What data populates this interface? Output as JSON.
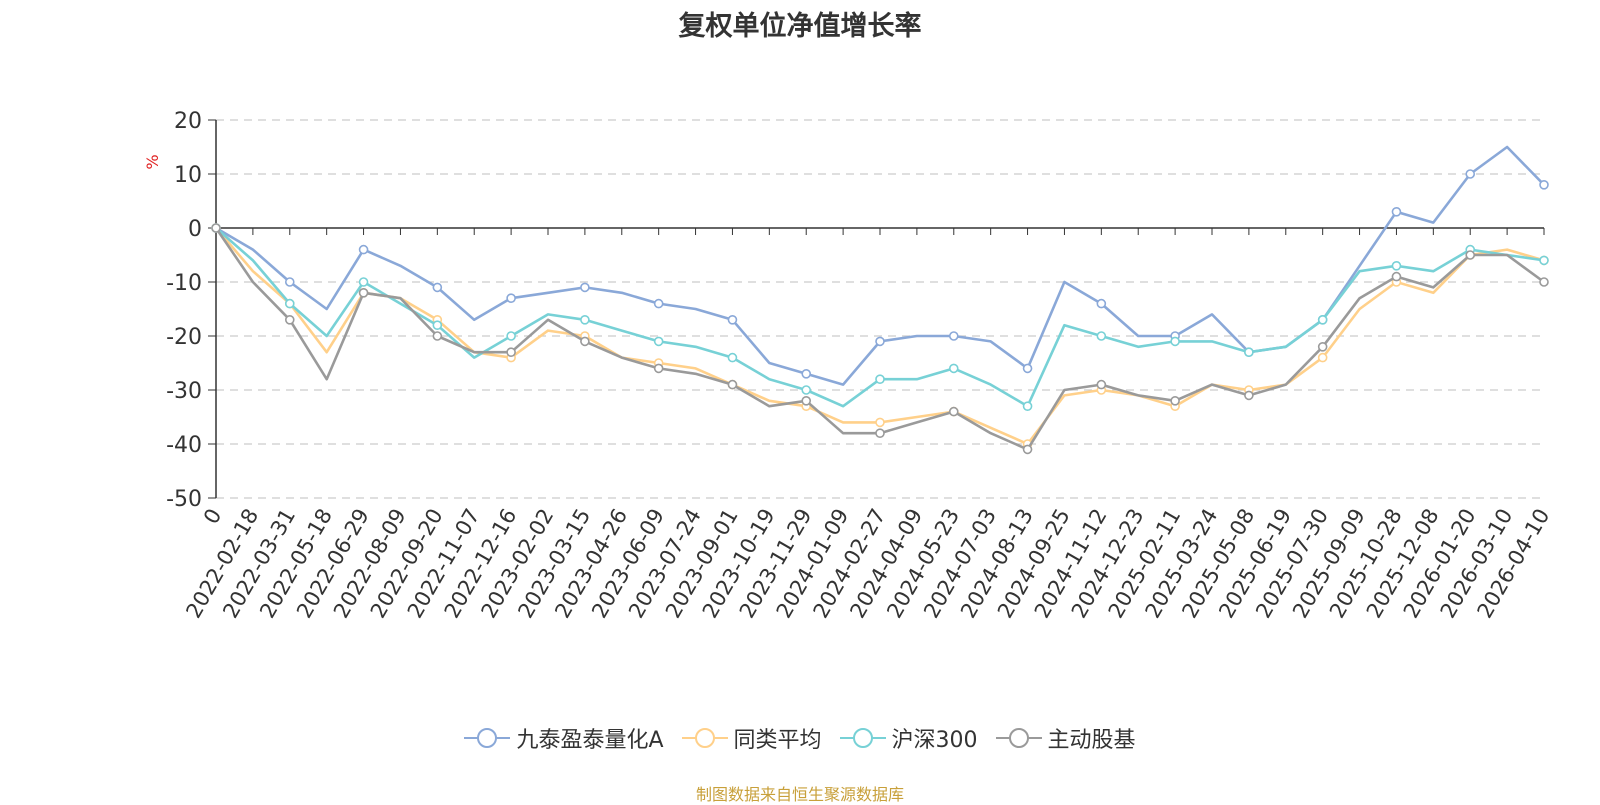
{
  "chart_data": {
    "type": "line",
    "title": "复权单位净值增长率",
    "ylabel": "%",
    "xlabel": "",
    "ylim": [
      -50,
      20
    ],
    "yticks": [
      20,
      10,
      0,
      -10,
      -20,
      -30,
      -40,
      -50
    ],
    "grid": true,
    "categories": [
      "0",
      "2022-02-18",
      "2022-03-31",
      "2022-05-18",
      "2022-06-29",
      "2022-08-09",
      "2022-09-20",
      "2022-11-07",
      "2022-12-16",
      "2023-02-02",
      "2023-03-15",
      "2023-04-26",
      "2023-06-09",
      "2023-07-24",
      "2023-09-01",
      "2023-10-19",
      "2023-11-29",
      "2024-01-09",
      "2024-02-27",
      "2024-04-09",
      "2024-05-23",
      "2024-07-03",
      "2024-08-13",
      "2024-09-25",
      "2024-11-12",
      "2024-12-23",
      "2025-02-11",
      "2025-03-24",
      "2025-05-08",
      "2025-06-19",
      "2025-07-30",
      "2025-09-09",
      "2025-10-28",
      "2025-12-08",
      "2026-01-20",
      "2026-03-10",
      "2026-04-10"
    ],
    "series": [
      {
        "name": "九泰盈泰量化A",
        "color": "#8aa8d8",
        "values": [
          0,
          -4,
          -10,
          -15,
          -4,
          -7,
          -11,
          -17,
          -13,
          -12,
          -11,
          -12,
          -14,
          -15,
          -17,
          -25,
          -27,
          -29,
          -21,
          -20,
          -20,
          -21,
          -26,
          -10,
          -14,
          -20,
          -20,
          -16,
          -23,
          -22,
          -17,
          -7,
          3,
          1,
          10,
          15,
          8
        ]
      },
      {
        "name": "同类平均",
        "color": "#ffd08a",
        "values": [
          0,
          -8,
          -14,
          -23,
          -12,
          -13,
          -17,
          -23,
          -24,
          -19,
          -20,
          -24,
          -25,
          -26,
          -29,
          -32,
          -33,
          -36,
          -36,
          -35,
          -34,
          -37,
          -40,
          -31,
          -30,
          -31,
          -33,
          -29,
          -30,
          -29,
          -24,
          -15,
          -10,
          -12,
          -5,
          -4,
          -6
        ]
      },
      {
        "name": "沪深300",
        "color": "#77d1d6",
        "values": [
          0,
          -6,
          -14,
          -20,
          -10,
          -14,
          -18,
          -24,
          -20,
          -16,
          -17,
          -19,
          -21,
          -22,
          -24,
          -28,
          -30,
          -33,
          -28,
          -28,
          -26,
          -29,
          -33,
          -18,
          -20,
          -22,
          -21,
          -21,
          -23,
          -22,
          -17,
          -8,
          -7,
          -8,
          -4,
          -5,
          -6
        ]
      },
      {
        "name": "主动股基",
        "color": "#9a9a9a",
        "values": [
          0,
          -10,
          -17,
          -28,
          -12,
          -13,
          -20,
          -23,
          -23,
          -17,
          -21,
          -24,
          -26,
          -27,
          -29,
          -33,
          -32,
          -38,
          -38,
          -36,
          -34,
          -38,
          -41,
          -30,
          -29,
          -31,
          -32,
          -29,
          -31,
          -29,
          -22,
          -13,
          -9,
          -11,
          -5,
          -5,
          -10
        ]
      }
    ]
  },
  "source_text": "制图数据来自恒生聚源数据库"
}
